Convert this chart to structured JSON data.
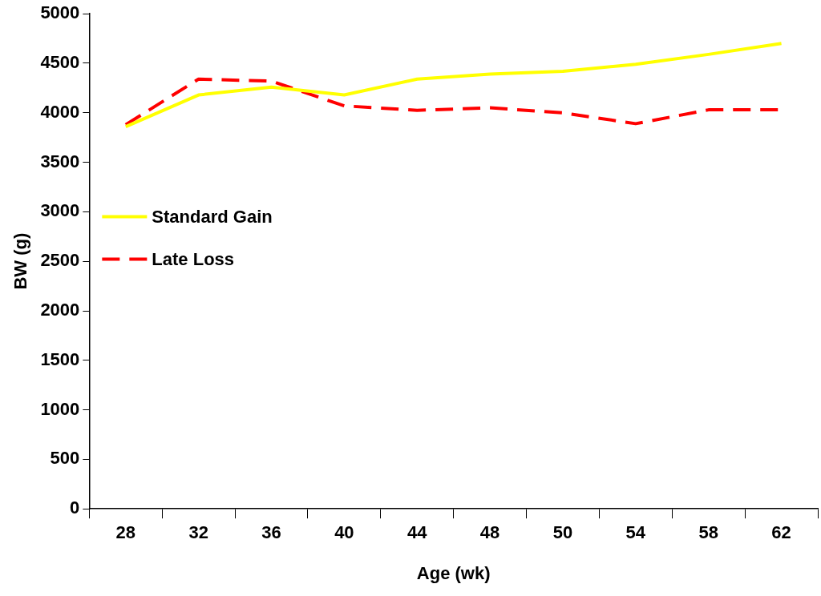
{
  "chart_data": {
    "type": "line",
    "xlabel": "Age (wk)",
    "ylabel": "BW (g)",
    "categories": [
      "28",
      "32",
      "36",
      "40",
      "44",
      "48",
      "50",
      "54",
      "58",
      "62"
    ],
    "series": [
      {
        "name": "Standard Gain",
        "color": "#ffff00",
        "line_style": "solid",
        "values": [
          3860,
          4180,
          4260,
          4180,
          4340,
          4390,
          4420,
          4490,
          4590,
          4700
        ]
      },
      {
        "name": "Late Loss",
        "color": "#ff0000",
        "line_style": "dashed",
        "values": [
          3880,
          4340,
          4320,
          4070,
          4025,
          4050,
          4000,
          3890,
          4030,
          4030
        ]
      }
    ],
    "ylim": [
      0,
      5000
    ],
    "yticks": [
      0,
      500,
      1000,
      1500,
      2000,
      2500,
      3000,
      3500,
      4000,
      4500,
      5000
    ],
    "grid": false,
    "legend": "left",
    "marker": "none"
  }
}
